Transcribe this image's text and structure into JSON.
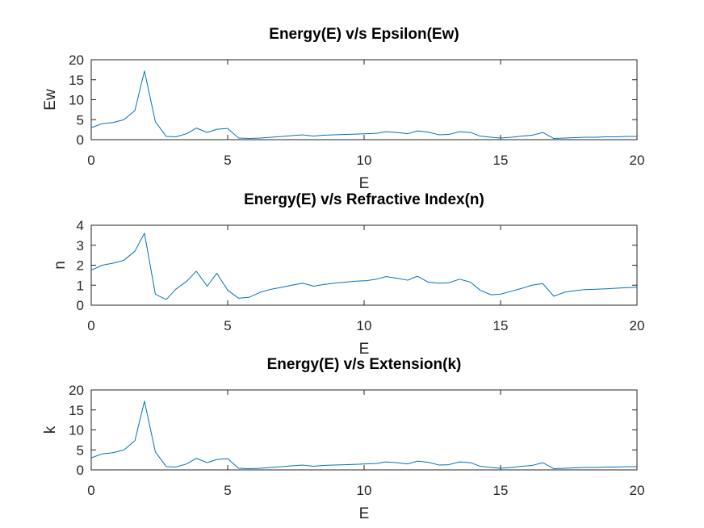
{
  "colors": {
    "line": "#0072BD",
    "axis": "#262626",
    "background": "#ffffff"
  },
  "chart_data": [
    {
      "type": "line",
      "title": "Energy(E) v/s Epsilon(Ew)",
      "xlabel": "E",
      "ylabel": "Ew",
      "xlim": [
        0,
        20
      ],
      "ylim": [
        0,
        20
      ],
      "xticks": [
        "0",
        "5",
        "10",
        "15",
        "20"
      ],
      "yticks": [
        "0",
        "5",
        "10",
        "15",
        "20"
      ],
      "grid": false,
      "series": [
        {
          "x": [
            0,
            0.4,
            0.8,
            1.2,
            1.6,
            1.95,
            2.35,
            2.75,
            3.1,
            3.5,
            3.85,
            4.25,
            4.6,
            5.0,
            5.4,
            5.8,
            6.2,
            6.6,
            7.0,
            7.35,
            7.75,
            8.15,
            8.5,
            8.9,
            9.3,
            9.7,
            10.05,
            10.45,
            10.8,
            11.2,
            11.6,
            11.95,
            12.35,
            12.75,
            13.1,
            13.5,
            13.9,
            14.25,
            14.65,
            15.0,
            15.4,
            15.8,
            16.15,
            16.55,
            16.95,
            17.35,
            17.7,
            18.1,
            18.5,
            18.85,
            19.25,
            19.65,
            20
          ],
          "y": [
            3.0,
            4.0,
            4.3,
            5.0,
            7.3,
            17.2,
            4.5,
            0.8,
            0.7,
            1.5,
            2.9,
            1.8,
            2.6,
            2.8,
            0.4,
            0.3,
            0.4,
            0.6,
            0.8,
            1.0,
            1.2,
            0.9,
            1.1,
            1.2,
            1.3,
            1.4,
            1.5,
            1.6,
            2.0,
            1.8,
            1.5,
            2.2,
            1.9,
            1.2,
            1.3,
            2.0,
            1.8,
            0.9,
            0.6,
            0.4,
            0.6,
            0.9,
            1.1,
            1.8,
            0.3,
            0.4,
            0.5,
            0.6,
            0.6,
            0.7,
            0.7,
            0.8,
            0.8
          ]
        }
      ]
    },
    {
      "type": "line",
      "title": "Energy(E) v/s Refractive Index(n)",
      "xlabel": "E",
      "ylabel": "n",
      "xlim": [
        0,
        20
      ],
      "ylim": [
        0,
        4
      ],
      "xticks": [
        "0",
        "5",
        "10",
        "15",
        "20"
      ],
      "yticks": [
        "0",
        "1",
        "2",
        "3",
        "4"
      ],
      "grid": false,
      "series": [
        {
          "x": [
            0,
            0.4,
            0.8,
            1.2,
            1.6,
            1.95,
            2.35,
            2.75,
            3.1,
            3.5,
            3.85,
            4.25,
            4.6,
            5.0,
            5.4,
            5.8,
            6.2,
            6.6,
            7.0,
            7.35,
            7.75,
            8.15,
            8.5,
            8.9,
            9.3,
            9.7,
            10.05,
            10.45,
            10.8,
            11.2,
            11.6,
            11.95,
            12.35,
            12.75,
            13.1,
            13.5,
            13.9,
            14.25,
            14.65,
            15.0,
            15.4,
            15.8,
            16.15,
            16.55,
            16.95,
            17.35,
            17.7,
            18.1,
            18.5,
            18.85,
            19.25,
            19.65,
            20
          ],
          "y": [
            1.75,
            2.0,
            2.1,
            2.25,
            2.7,
            3.6,
            0.55,
            0.28,
            0.8,
            1.2,
            1.7,
            0.95,
            1.6,
            0.75,
            0.35,
            0.4,
            0.65,
            0.8,
            0.9,
            1.0,
            1.1,
            0.95,
            1.03,
            1.1,
            1.15,
            1.2,
            1.22,
            1.3,
            1.43,
            1.35,
            1.25,
            1.45,
            1.15,
            1.1,
            1.12,
            1.3,
            1.15,
            0.75,
            0.52,
            0.55,
            0.7,
            0.85,
            1.0,
            1.08,
            0.45,
            0.65,
            0.72,
            0.78,
            0.8,
            0.82,
            0.85,
            0.88,
            0.9
          ]
        }
      ]
    },
    {
      "type": "line",
      "title": "Energy(E) v/s Extension(k)",
      "xlabel": "E",
      "ylabel": "k",
      "xlim": [
        0,
        20
      ],
      "ylim": [
        0,
        20
      ],
      "xticks": [
        "0",
        "5",
        "10",
        "15",
        "20"
      ],
      "yticks": [
        "0",
        "5",
        "10",
        "15",
        "20"
      ],
      "grid": false,
      "series": [
        {
          "x": [
            0,
            0.4,
            0.8,
            1.2,
            1.6,
            1.95,
            2.35,
            2.75,
            3.1,
            3.5,
            3.85,
            4.25,
            4.6,
            5.0,
            5.4,
            5.8,
            6.2,
            6.6,
            7.0,
            7.35,
            7.75,
            8.15,
            8.5,
            8.9,
            9.3,
            9.7,
            10.05,
            10.45,
            10.8,
            11.2,
            11.6,
            11.95,
            12.35,
            12.75,
            13.1,
            13.5,
            13.9,
            14.25,
            14.65,
            15.0,
            15.4,
            15.8,
            16.15,
            16.55,
            16.95,
            17.35,
            17.7,
            18.1,
            18.5,
            18.85,
            19.25,
            19.65,
            20
          ],
          "y": [
            3.0,
            4.0,
            4.3,
            5.0,
            7.3,
            17.2,
            4.5,
            0.8,
            0.7,
            1.5,
            2.9,
            1.8,
            2.6,
            2.8,
            0.4,
            0.3,
            0.4,
            0.6,
            0.8,
            1.0,
            1.2,
            0.9,
            1.1,
            1.2,
            1.3,
            1.4,
            1.5,
            1.6,
            2.0,
            1.8,
            1.5,
            2.2,
            1.9,
            1.2,
            1.3,
            2.0,
            1.8,
            0.9,
            0.6,
            0.4,
            0.6,
            0.9,
            1.1,
            1.8,
            0.3,
            0.4,
            0.5,
            0.6,
            0.6,
            0.7,
            0.7,
            0.8,
            0.8
          ]
        }
      ]
    }
  ]
}
